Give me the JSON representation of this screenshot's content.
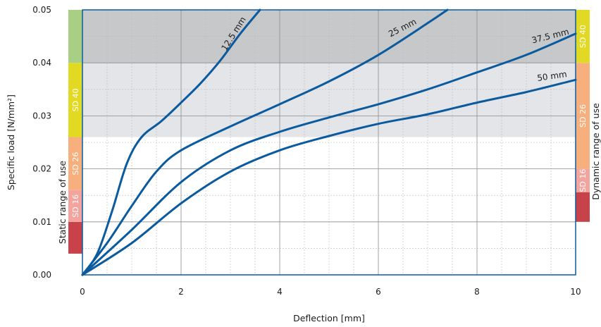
{
  "chart_data": {
    "type": "line",
    "xlabel": "Deflection [mm]",
    "ylabel": "Specific load [N/mm²]",
    "xlim": [
      0,
      10
    ],
    "ylim": [
      0,
      0.05
    ],
    "x_ticks": [
      "0",
      "2",
      "4",
      "6",
      "8",
      "10"
    ],
    "y_ticks": [
      "0.00",
      "0.01",
      "0.02",
      "0.03",
      "0.04",
      "0.05"
    ],
    "grid": true,
    "series": [
      {
        "name": "12.5 mm",
        "color": "#0a5aa0",
        "points": [
          [
            0,
            0
          ],
          [
            0.3,
            0.004
          ],
          [
            0.6,
            0.012
          ],
          [
            0.9,
            0.021
          ],
          [
            1.2,
            0.026
          ],
          [
            1.6,
            0.029
          ],
          [
            2.0,
            0.0325
          ],
          [
            2.4,
            0.0362
          ],
          [
            2.8,
            0.0405
          ],
          [
            3.2,
            0.0455
          ],
          [
            3.6,
            0.05
          ]
        ]
      },
      {
        "name": "25 mm",
        "color": "#0a5aa0",
        "points": [
          [
            0,
            0
          ],
          [
            0.5,
            0.006
          ],
          [
            1.0,
            0.013
          ],
          [
            1.5,
            0.0195
          ],
          [
            2.0,
            0.0235
          ],
          [
            3.0,
            0.028
          ],
          [
            4.0,
            0.0322
          ],
          [
            5.0,
            0.0365
          ],
          [
            6.0,
            0.0415
          ],
          [
            7.0,
            0.0475
          ],
          [
            7.4,
            0.05
          ]
        ]
      },
      {
        "name": "37.5 mm",
        "color": "#0a5aa0",
        "points": [
          [
            0,
            0
          ],
          [
            1.0,
            0.0085
          ],
          [
            2.0,
            0.0175
          ],
          [
            3.0,
            0.0235
          ],
          [
            4.0,
            0.027
          ],
          [
            5.0,
            0.0297
          ],
          [
            6.0,
            0.0322
          ],
          [
            7.0,
            0.035
          ],
          [
            8.0,
            0.0382
          ],
          [
            9.0,
            0.0415
          ],
          [
            10.0,
            0.0455
          ]
        ]
      },
      {
        "name": "50 mm",
        "color": "#0a5aa0",
        "points": [
          [
            0,
            0
          ],
          [
            1.0,
            0.006
          ],
          [
            2.0,
            0.0135
          ],
          [
            3.0,
            0.0195
          ],
          [
            4.0,
            0.0235
          ],
          [
            5.0,
            0.0262
          ],
          [
            6.0,
            0.0285
          ],
          [
            7.0,
            0.0303
          ],
          [
            8.0,
            0.0325
          ],
          [
            9.0,
            0.0345
          ],
          [
            10.0,
            0.0368
          ]
        ]
      }
    ],
    "background_zones": [
      {
        "from": 0.04,
        "to": 0.05,
        "color": "#c6c8ca"
      },
      {
        "from": 0.026,
        "to": 0.04,
        "color": "#e3e5e8"
      }
    ],
    "static_range": {
      "title": "Static range of use",
      "bands": [
        {
          "label": "",
          "from": 0.004,
          "to": 0.01,
          "color": "#c8424a"
        },
        {
          "label": "SD 16",
          "from": 0.01,
          "to": 0.016,
          "color": "#f3a49e"
        },
        {
          "label": "SD 26",
          "from": 0.016,
          "to": 0.026,
          "color": "#f7b07d"
        },
        {
          "label": "SD 40",
          "from": 0.026,
          "to": 0.04,
          "color": "#e2d924"
        },
        {
          "label": "",
          "from": 0.04,
          "to": 0.05,
          "color": "#a9cf84"
        }
      ]
    },
    "dynamic_range": {
      "title": "Dynamic range of use",
      "bands": [
        {
          "label": "",
          "from": 0.01,
          "to": 0.0156,
          "color": "#c8424a"
        },
        {
          "label": "SD 16",
          "from": 0.0156,
          "to": 0.02,
          "color": "#f3a49e"
        },
        {
          "label": "SD 26",
          "from": 0.02,
          "to": 0.04,
          "color": "#f7b07d"
        },
        {
          "label": "SD 40",
          "from": 0.04,
          "to": 0.05,
          "color": "#e2d924"
        }
      ]
    }
  }
}
